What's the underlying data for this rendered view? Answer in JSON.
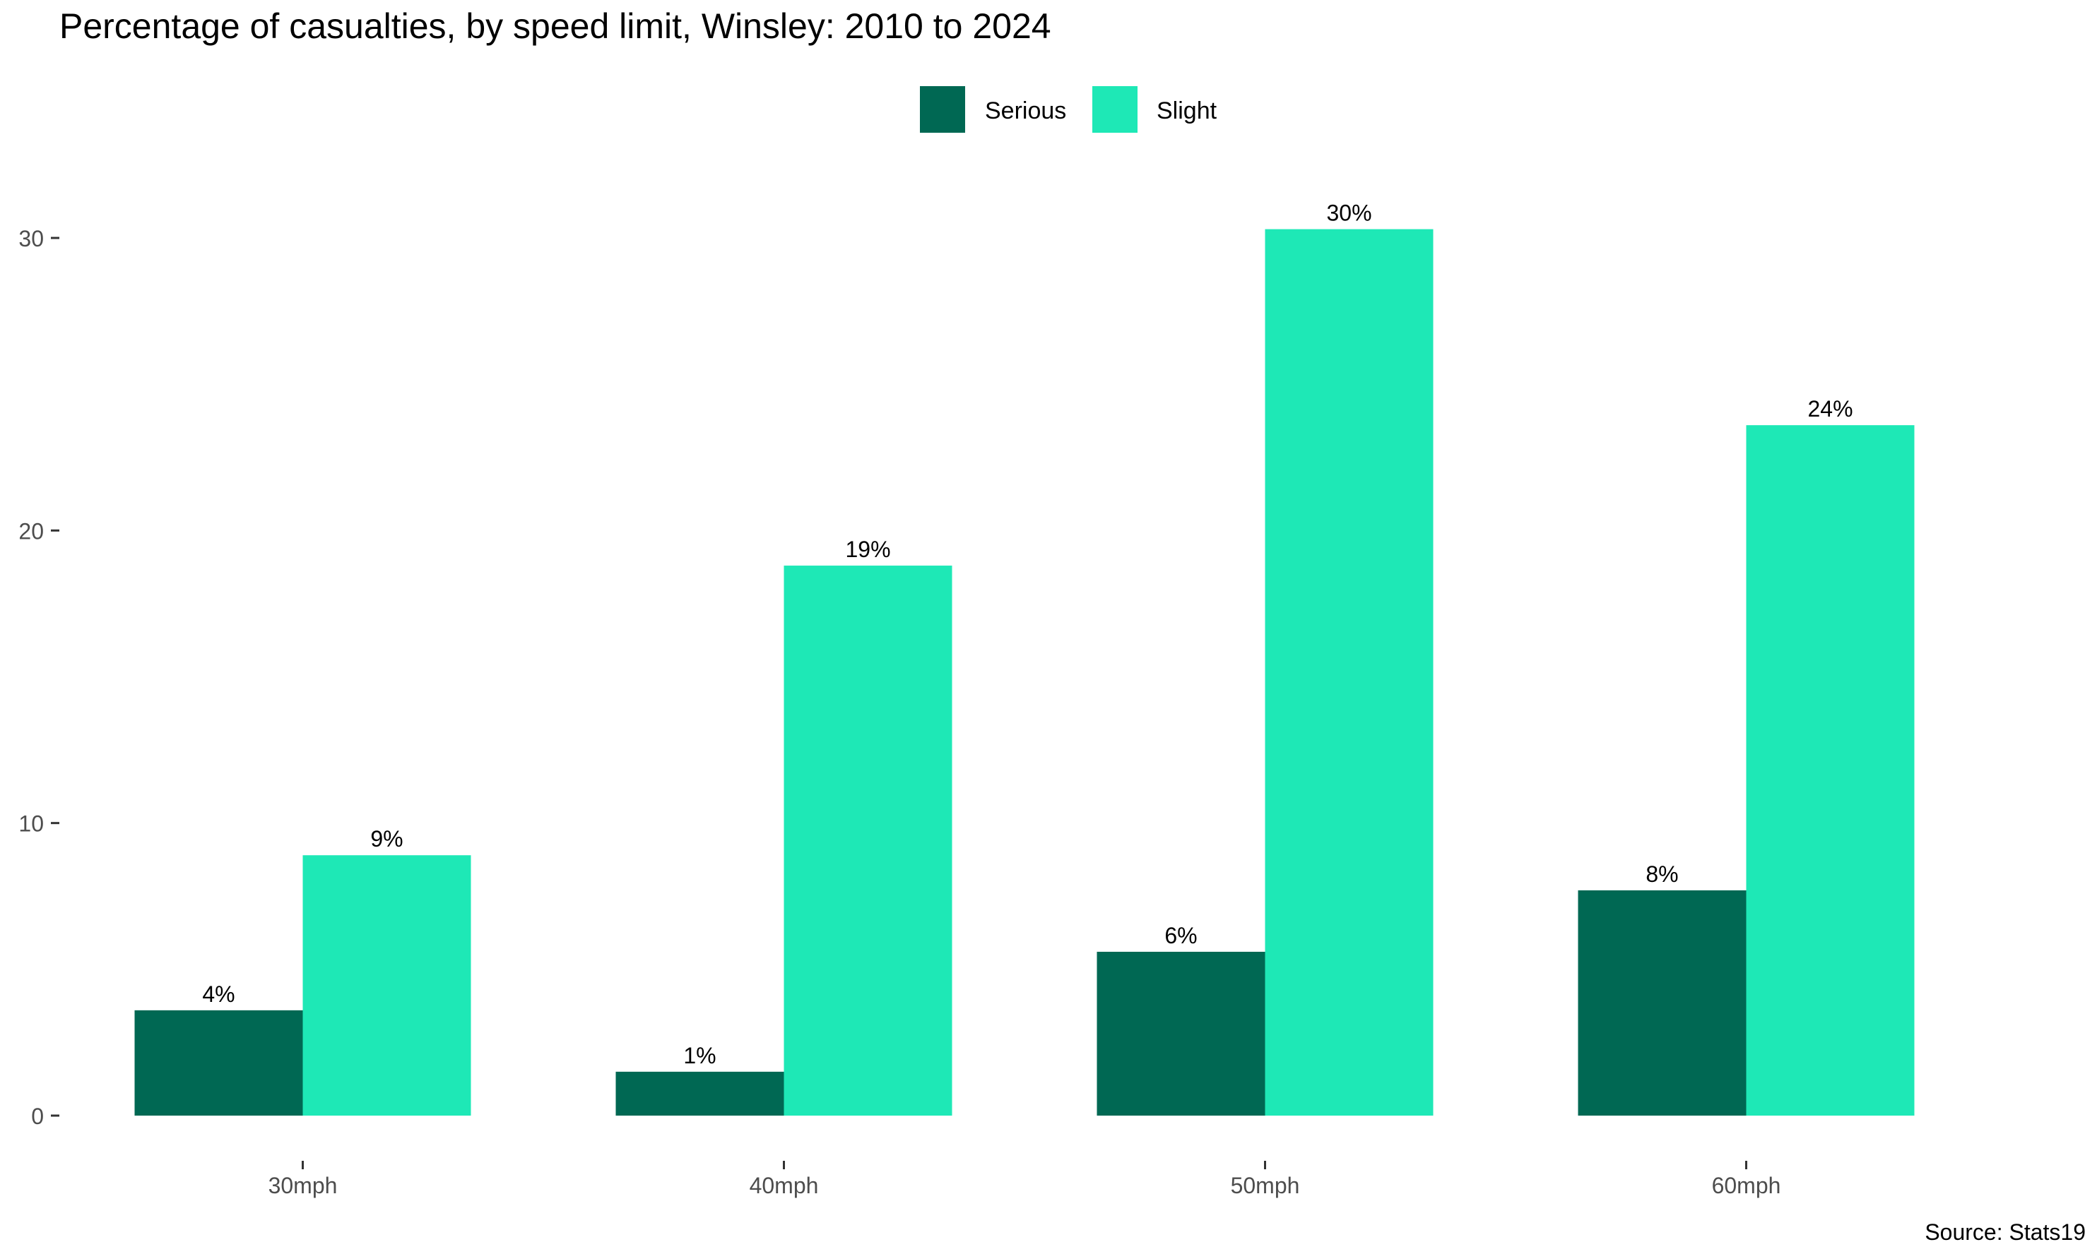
{
  "chart_data": {
    "type": "bar",
    "title": "Percentage of casualties, by speed limit, Winsley: 2010 to 2024",
    "xlabel": "",
    "ylabel": "",
    "source": "Source: Stats19",
    "categories": [
      "30mph",
      "40mph",
      "50mph",
      "60mph"
    ],
    "series": [
      {
        "name": "Serious",
        "color": "#006853",
        "values": [
          3.6,
          1.5,
          5.6,
          7.7
        ],
        "labels": [
          "4%",
          "1%",
          "6%",
          "8%"
        ]
      },
      {
        "name": "Slight",
        "color": "#1EE8B6",
        "values": [
          8.9,
          18.8,
          30.3,
          23.6
        ],
        "labels": [
          "9%",
          "19%",
          "30%",
          "24%"
        ]
      }
    ],
    "ylim": [
      0,
      31.5
    ],
    "yticks": [
      0,
      10,
      20,
      30
    ],
    "legend_position": "top",
    "grid": false
  }
}
